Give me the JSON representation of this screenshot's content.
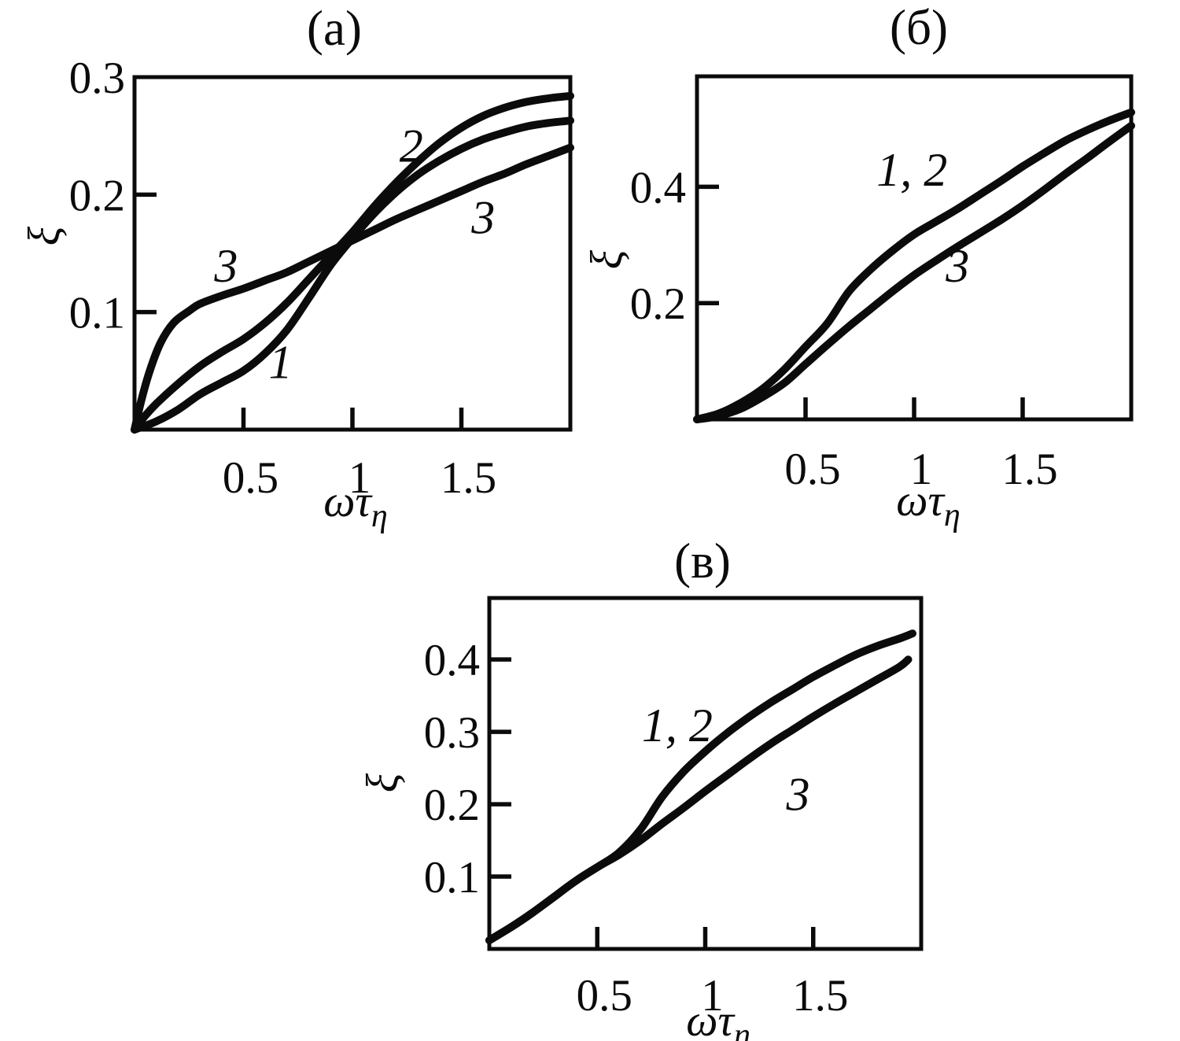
{
  "figure_kind": "three-panel line figure",
  "ink_color": "#0b0b0b",
  "background_color": "#ffffff",
  "chart_data": [
    {
      "id": "a",
      "type": "line",
      "title": "(а)",
      "ylabel": "ξ",
      "xlabel": "ωτη",
      "xlabel_base": "ωτ",
      "xlabel_subscript": "η",
      "xlim": [
        0,
        2
      ],
      "ylim": [
        0,
        0.3
      ],
      "grid": false,
      "legend": "none",
      "x_ticks": [
        {
          "x": 0.5,
          "label": "0.5"
        },
        {
          "x": 1,
          "label": "1"
        },
        {
          "x": 1.5,
          "label": "1.5"
        }
      ],
      "y_ticks": [
        {
          "y": 0.1,
          "label": "0.1",
          "mark": true
        },
        {
          "y": 0.2,
          "label": "0.2",
          "mark": true
        },
        {
          "y": 0.3,
          "label": "0.3",
          "mark": false
        }
      ],
      "series": [
        {
          "name": "1",
          "points": [
            [
              0,
              0
            ],
            [
              0.1,
              0.007
            ],
            [
              0.2,
              0.017
            ],
            [
              0.3,
              0.03
            ],
            [
              0.4,
              0.04
            ],
            [
              0.5,
              0.05
            ],
            [
              0.6,
              0.065
            ],
            [
              0.7,
              0.085
            ],
            [
              0.8,
              0.112
            ],
            [
              0.9,
              0.14
            ],
            [
              1,
              0.163
            ],
            [
              1.1,
              0.184
            ],
            [
              1.2,
              0.202
            ],
            [
              1.3,
              0.217
            ],
            [
              1.4,
              0.229
            ],
            [
              1.5,
              0.239
            ],
            [
              1.6,
              0.247
            ],
            [
              1.7,
              0.253
            ],
            [
              1.8,
              0.258
            ],
            [
              1.9,
              0.261
            ],
            [
              2,
              0.263
            ]
          ]
        },
        {
          "name": "2",
          "points": [
            [
              0,
              0
            ],
            [
              0.05,
              0.012
            ],
            [
              0.1,
              0.022
            ],
            [
              0.2,
              0.039
            ],
            [
              0.3,
              0.054
            ],
            [
              0.4,
              0.066
            ],
            [
              0.5,
              0.077
            ],
            [
              0.6,
              0.091
            ],
            [
              0.7,
              0.108
            ],
            [
              0.8,
              0.128
            ],
            [
              0.9,
              0.148
            ],
            [
              1,
              0.168
            ],
            [
              1.1,
              0.19
            ],
            [
              1.2,
              0.21
            ],
            [
              1.3,
              0.228
            ],
            [
              1.4,
              0.244
            ],
            [
              1.5,
              0.257
            ],
            [
              1.6,
              0.267
            ],
            [
              1.7,
              0.274
            ],
            [
              1.8,
              0.279
            ],
            [
              1.9,
              0.282
            ],
            [
              2,
              0.284
            ]
          ]
        },
        {
          "name": "3",
          "points": [
            [
              0,
              0
            ],
            [
              0.03,
              0.024
            ],
            [
              0.07,
              0.05
            ],
            [
              0.12,
              0.074
            ],
            [
              0.18,
              0.091
            ],
            [
              0.25,
              0.101
            ],
            [
              0.3,
              0.107
            ],
            [
              0.4,
              0.114
            ],
            [
              0.5,
              0.12
            ],
            [
              0.6,
              0.127
            ],
            [
              0.7,
              0.134
            ],
            [
              0.8,
              0.143
            ],
            [
              0.9,
              0.152
            ],
            [
              1,
              0.161
            ],
            [
              1.1,
              0.17
            ],
            [
              1.2,
              0.179
            ],
            [
              1.3,
              0.187
            ],
            [
              1.4,
              0.195
            ],
            [
              1.5,
              0.203
            ],
            [
              1.6,
              0.211
            ],
            [
              1.7,
              0.218
            ],
            [
              1.8,
              0.226
            ],
            [
              1.9,
              0.233
            ],
            [
              2,
              0.24
            ]
          ]
        }
      ],
      "annotations": [
        {
          "text": "3",
          "x": 0.42,
          "y": 0.14
        },
        {
          "text": "1",
          "x": 0.67,
          "y": 0.058
        },
        {
          "text": "2",
          "x": 1.27,
          "y": 0.242
        },
        {
          "text": "3",
          "x": 1.6,
          "y": 0.181
        }
      ]
    },
    {
      "id": "b",
      "type": "line",
      "title": "(б)",
      "ylabel": "ξ",
      "xlabel": "ωτη",
      "xlabel_base": "ωτ",
      "xlabel_subscript": "η",
      "xlim": [
        0,
        2
      ],
      "ylim": [
        0,
        0.59
      ],
      "grid": false,
      "legend": "none",
      "x_ticks": [
        {
          "x": 0.5,
          "label": "0.5"
        },
        {
          "x": 1,
          "label": "1"
        },
        {
          "x": 1.5,
          "label": "1.5"
        }
      ],
      "y_ticks": [
        {
          "y": 0.2,
          "label": "0.2",
          "mark": true
        },
        {
          "y": 0.4,
          "label": "0.4",
          "mark": true
        }
      ],
      "series": [
        {
          "name": "1, 2",
          "points": [
            [
              0,
              0
            ],
            [
              0.1,
              0.01
            ],
            [
              0.2,
              0.028
            ],
            [
              0.3,
              0.052
            ],
            [
              0.4,
              0.085
            ],
            [
              0.5,
              0.125
            ],
            [
              0.6,
              0.165
            ],
            [
              0.7,
              0.22
            ],
            [
              0.8,
              0.258
            ],
            [
              0.9,
              0.29
            ],
            [
              1,
              0.318
            ],
            [
              1.1,
              0.34
            ],
            [
              1.2,
              0.362
            ],
            [
              1.3,
              0.386
            ],
            [
              1.4,
              0.41
            ],
            [
              1.5,
              0.435
            ],
            [
              1.6,
              0.458
            ],
            [
              1.7,
              0.48
            ],
            [
              1.8,
              0.498
            ],
            [
              1.9,
              0.514
            ],
            [
              2,
              0.528
            ]
          ]
        },
        {
          "name": "3",
          "points": [
            [
              0,
              0
            ],
            [
              0.1,
              0.006
            ],
            [
              0.2,
              0.018
            ],
            [
              0.3,
              0.038
            ],
            [
              0.4,
              0.062
            ],
            [
              0.5,
              0.095
            ],
            [
              0.6,
              0.128
            ],
            [
              0.7,
              0.16
            ],
            [
              0.8,
              0.19
            ],
            [
              0.9,
              0.22
            ],
            [
              1,
              0.248
            ],
            [
              1.1,
              0.273
            ],
            [
              1.2,
              0.297
            ],
            [
              1.3,
              0.32
            ],
            [
              1.4,
              0.343
            ],
            [
              1.5,
              0.368
            ],
            [
              1.6,
              0.395
            ],
            [
              1.7,
              0.423
            ],
            [
              1.8,
              0.45
            ],
            [
              1.9,
              0.478
            ],
            [
              2,
              0.505
            ]
          ]
        }
      ],
      "annotations": [
        {
          "text": "1, 2",
          "x": 0.99,
          "y": 0.43
        },
        {
          "text": "3",
          "x": 1.2,
          "y": 0.265
        }
      ]
    },
    {
      "id": "v",
      "type": "line",
      "title": "(в)",
      "ylabel": "ξ",
      "xlabel": "ωτη",
      "xlabel_base": "ωτ",
      "xlabel_subscript": "η",
      "xlim": [
        0,
        2
      ],
      "ylim": [
        0,
        0.485
      ],
      "grid": false,
      "legend": "none",
      "x_ticks": [
        {
          "x": 0.5,
          "label": "0.5"
        },
        {
          "x": 1,
          "label": "1"
        },
        {
          "x": 1.5,
          "label": "1.5"
        }
      ],
      "y_ticks": [
        {
          "y": 0.1,
          "label": "0.1",
          "mark": true
        },
        {
          "y": 0.2,
          "label": "0.2",
          "mark": true
        },
        {
          "y": 0.3,
          "label": "0.3",
          "mark": true
        },
        {
          "y": 0.4,
          "label": "0.4",
          "mark": true
        }
      ],
      "series": [
        {
          "name": "1, 2",
          "points": [
            [
              0,
              0.012
            ],
            [
              0.1,
              0.03
            ],
            [
              0.2,
              0.05
            ],
            [
              0.3,
              0.072
            ],
            [
              0.4,
              0.094
            ],
            [
              0.5,
              0.113
            ],
            [
              0.6,
              0.133
            ],
            [
              0.7,
              0.165
            ],
            [
              0.8,
              0.21
            ],
            [
              0.9,
              0.245
            ],
            [
              1,
              0.273
            ],
            [
              1.1,
              0.298
            ],
            [
              1.2,
              0.32
            ],
            [
              1.3,
              0.34
            ],
            [
              1.4,
              0.358
            ],
            [
              1.5,
              0.376
            ],
            [
              1.6,
              0.392
            ],
            [
              1.7,
              0.407
            ],
            [
              1.8,
              0.419
            ],
            [
              1.9,
              0.429
            ],
            [
              1.96,
              0.436
            ]
          ]
        },
        {
          "name": "3",
          "points": [
            [
              0,
              0.012
            ],
            [
              0.1,
              0.03
            ],
            [
              0.2,
              0.05
            ],
            [
              0.3,
              0.072
            ],
            [
              0.4,
              0.094
            ],
            [
              0.5,
              0.113
            ],
            [
              0.6,
              0.13
            ],
            [
              0.7,
              0.15
            ],
            [
              0.8,
              0.173
            ],
            [
              0.9,
              0.195
            ],
            [
              1,
              0.218
            ],
            [
              1.1,
              0.24
            ],
            [
              1.2,
              0.262
            ],
            [
              1.3,
              0.283
            ],
            [
              1.4,
              0.302
            ],
            [
              1.5,
              0.321
            ],
            [
              1.6,
              0.339
            ],
            [
              1.7,
              0.356
            ],
            [
              1.8,
              0.373
            ],
            [
              1.9,
              0.39
            ],
            [
              1.94,
              0.4
            ]
          ]
        }
      ],
      "annotations": [
        {
          "text": "1, 2",
          "x": 0.87,
          "y": 0.31
        },
        {
          "text": "3",
          "x": 1.43,
          "y": 0.215
        }
      ]
    }
  ]
}
